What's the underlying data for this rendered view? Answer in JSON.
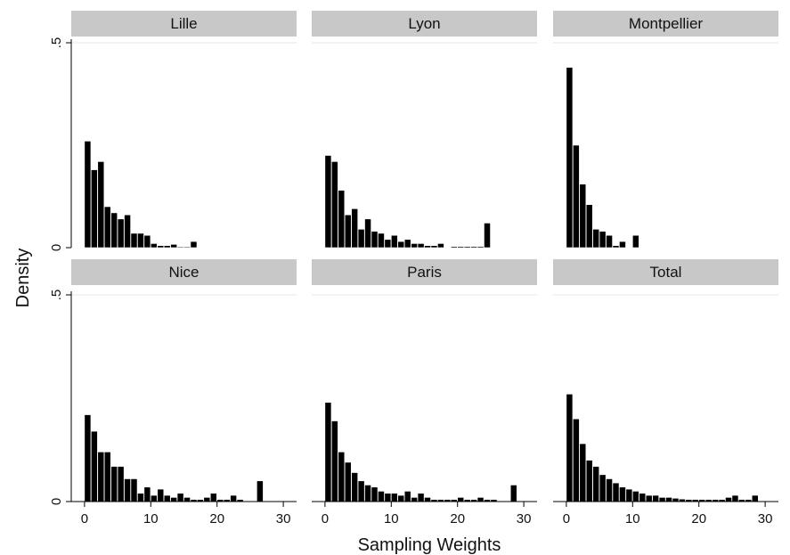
{
  "chart_data": {
    "type": "bar",
    "xlabel": "Sampling Weights",
    "ylabel": "Density",
    "xlim": [
      -2,
      32
    ],
    "ylim": [
      0,
      0.5
    ],
    "xticks": [
      0,
      10,
      20,
      30
    ],
    "xtick_labels": [
      "0",
      "10",
      "20",
      "30"
    ],
    "yticks": [
      0,
      0.5
    ],
    "ytick_labels": [
      "0",
      ".5"
    ],
    "grid": false,
    "colors": {
      "bar": "#000000",
      "bar_stroke": "#ffffff",
      "strip": "#c8c8c8",
      "axis": "#000000"
    },
    "panels": [
      {
        "name": "Lille",
        "bin_width": 0.95,
        "bins": [
          [
            0,
            0.26
          ],
          [
            1,
            0.19
          ],
          [
            2,
            0.21
          ],
          [
            3,
            0.1
          ],
          [
            4,
            0.085
          ],
          [
            5,
            0.07
          ],
          [
            6,
            0.08
          ],
          [
            7,
            0.035
          ],
          [
            8,
            0.035
          ],
          [
            9,
            0.03
          ],
          [
            10,
            0.01
          ],
          [
            11,
            0.005
          ],
          [
            12,
            0.005
          ],
          [
            13,
            0.008
          ],
          [
            14,
            0.002
          ],
          [
            15,
            0.002
          ],
          [
            16,
            0.015
          ]
        ]
      },
      {
        "name": "Lyon",
        "bin_width": 0.95,
        "bins": [
          [
            0,
            0.225
          ],
          [
            1,
            0.21
          ],
          [
            2,
            0.14
          ],
          [
            3,
            0.08
          ],
          [
            4,
            0.095
          ],
          [
            5,
            0.045
          ],
          [
            6,
            0.07
          ],
          [
            7,
            0.04
          ],
          [
            8,
            0.035
          ],
          [
            9,
            0.02
          ],
          [
            10,
            0.03
          ],
          [
            11,
            0.015
          ],
          [
            12,
            0.02
          ],
          [
            13,
            0.01
          ],
          [
            14,
            0.01
          ],
          [
            15,
            0.005
          ],
          [
            16,
            0.005
          ],
          [
            17,
            0.01
          ],
          [
            19,
            0.003
          ],
          [
            20,
            0.003
          ],
          [
            21,
            0.003
          ],
          [
            22,
            0.003
          ],
          [
            23,
            0.003
          ],
          [
            24,
            0.06
          ]
        ]
      },
      {
        "name": "Montpellier",
        "bin_width": 0.95,
        "bins": [
          [
            0,
            0.44
          ],
          [
            1,
            0.25
          ],
          [
            2,
            0.155
          ],
          [
            3,
            0.105
          ],
          [
            4,
            0.045
          ],
          [
            5,
            0.04
          ],
          [
            6,
            0.03
          ],
          [
            7,
            0.005
          ],
          [
            8,
            0.015
          ],
          [
            9,
            0.0
          ],
          [
            10,
            0.03
          ]
        ]
      },
      {
        "name": "Nice",
        "bin_width": 0.95,
        "bins": [
          [
            0,
            0.21
          ],
          [
            1,
            0.17
          ],
          [
            2,
            0.12
          ],
          [
            3,
            0.12
          ],
          [
            4,
            0.085
          ],
          [
            5,
            0.085
          ],
          [
            6,
            0.055
          ],
          [
            7,
            0.055
          ],
          [
            8,
            0.02
          ],
          [
            9,
            0.035
          ],
          [
            10,
            0.015
          ],
          [
            11,
            0.03
          ],
          [
            12,
            0.015
          ],
          [
            13,
            0.01
          ],
          [
            14,
            0.02
          ],
          [
            15,
            0.01
          ],
          [
            16,
            0.005
          ],
          [
            17,
            0.005
          ],
          [
            18,
            0.01
          ],
          [
            19,
            0.02
          ],
          [
            20,
            0.005
          ],
          [
            21,
            0.005
          ],
          [
            22,
            0.015
          ],
          [
            23,
            0.005
          ],
          [
            26,
            0.05
          ]
        ]
      },
      {
        "name": "Paris",
        "bin_width": 0.95,
        "bins": [
          [
            0,
            0.24
          ],
          [
            1,
            0.195
          ],
          [
            2,
            0.12
          ],
          [
            3,
            0.095
          ],
          [
            4,
            0.07
          ],
          [
            5,
            0.05
          ],
          [
            6,
            0.04
          ],
          [
            7,
            0.035
          ],
          [
            8,
            0.025
          ],
          [
            9,
            0.02
          ],
          [
            10,
            0.02
          ],
          [
            11,
            0.015
          ],
          [
            12,
            0.025
          ],
          [
            13,
            0.01
          ],
          [
            14,
            0.02
          ],
          [
            15,
            0.01
          ],
          [
            16,
            0.005
          ],
          [
            17,
            0.005
          ],
          [
            18,
            0.005
          ],
          [
            19,
            0.005
          ],
          [
            20,
            0.01
          ],
          [
            21,
            0.005
          ],
          [
            22,
            0.005
          ],
          [
            23,
            0.01
          ],
          [
            24,
            0.005
          ],
          [
            25,
            0.005
          ],
          [
            28,
            0.04
          ]
        ]
      },
      {
        "name": "Total",
        "bin_width": 0.95,
        "bins": [
          [
            0,
            0.26
          ],
          [
            1,
            0.2
          ],
          [
            2,
            0.14
          ],
          [
            3,
            0.1
          ],
          [
            4,
            0.085
          ],
          [
            5,
            0.065
          ],
          [
            6,
            0.055
          ],
          [
            7,
            0.045
          ],
          [
            8,
            0.035
          ],
          [
            9,
            0.03
          ],
          [
            10,
            0.025
          ],
          [
            11,
            0.02
          ],
          [
            12,
            0.015
          ],
          [
            13,
            0.015
          ],
          [
            14,
            0.01
          ],
          [
            15,
            0.01
          ],
          [
            16,
            0.008
          ],
          [
            17,
            0.006
          ],
          [
            18,
            0.005
          ],
          [
            19,
            0.005
          ],
          [
            20,
            0.005
          ],
          [
            21,
            0.005
          ],
          [
            22,
            0.005
          ],
          [
            23,
            0.005
          ],
          [
            24,
            0.01
          ],
          [
            25,
            0.015
          ],
          [
            26,
            0.005
          ],
          [
            27,
            0.005
          ],
          [
            28,
            0.015
          ]
        ]
      }
    ]
  }
}
